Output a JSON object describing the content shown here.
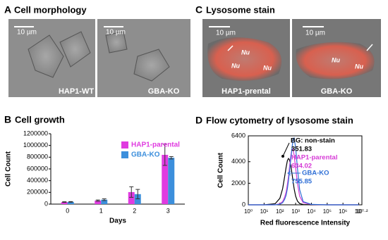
{
  "panels": [
    {
      "letter": "A",
      "title": "Cell morphology",
      "images": [
        {
          "scale": "10 µm",
          "label": "HAP1-WT"
        },
        {
          "scale": "10 µm",
          "label": "GBA-KO"
        }
      ]
    },
    {
      "letter": "C",
      "title": "Lysosome stain",
      "images": [
        {
          "scale": "10 µm",
          "label": "HAP1-prental",
          "nuclei": [
            "Nu",
            "Nu",
            "Nu"
          ]
        },
        {
          "scale": "10 µm",
          "label": "GBA-KO",
          "nuclei": [
            "Nu",
            "Nu"
          ]
        }
      ]
    }
  ],
  "chart_data": [
    {
      "type": "bar",
      "letter": "B",
      "title": "Cell growth",
      "xlabel": "Days",
      "ylabel": "Cell Count",
      "categories": [
        "0",
        "1",
        "2",
        "3"
      ],
      "series": [
        {
          "name": "HAP1-parental",
          "color": "#e03be0",
          "values": [
            35000,
            60000,
            205000,
            840000
          ],
          "errors": [
            5000,
            10000,
            90000,
            180000
          ]
        },
        {
          "name": "GBA-KO",
          "color": "#3c8fdc",
          "values": [
            38000,
            75000,
            170000,
            790000
          ],
          "errors": [
            5000,
            15000,
            80000,
            20000
          ]
        }
      ],
      "ylim": [
        0,
        1200000
      ],
      "yticks": [
        0,
        200000,
        400000,
        600000,
        800000,
        1000000,
        1200000
      ]
    },
    {
      "type": "line",
      "letter": "D",
      "title": "Flow cytometry of lysosome stain",
      "xlabel": "Red fluorescence Intensity",
      "ylabel": "Cell Count",
      "xscale": "log",
      "x": [
        1,
        10,
        50,
        100,
        150,
        200,
        250,
        300,
        350,
        400,
        500,
        600,
        700,
        800,
        1000,
        1300,
        1800,
        3000,
        10000,
        100000,
        10000000
      ],
      "series": [
        {
          "name": "BG: non-stain",
          "median": 351.83,
          "color": "#000000",
          "values": [
            0,
            0,
            100,
            600,
            1500,
            2600,
            3500,
            4100,
            4300,
            4200,
            3600,
            2800,
            2100,
            1500,
            800,
            350,
            120,
            30,
            0,
            0,
            0
          ]
        },
        {
          "name": "HAP1-parental",
          "median": 634.02,
          "color": "#d63ad6",
          "values": [
            0,
            0,
            0,
            100,
            300,
            700,
            1200,
            1900,
            2600,
            3400,
            4600,
            5200,
            5100,
            4600,
            3400,
            2000,
            800,
            200,
            30,
            0,
            0
          ]
        },
        {
          "name": "GBA-KO",
          "median": 755.85,
          "color": "#2f6fd6",
          "values": [
            0,
            0,
            0,
            50,
            200,
            500,
            900,
            1500,
            2200,
            3000,
            4300,
            5400,
            6100,
            6200,
            5300,
            3400,
            1400,
            300,
            40,
            0,
            0
          ]
        }
      ],
      "xlim": [
        1,
        15848932
      ],
      "xticks": [
        {
          "value": 1,
          "label": "10⁰"
        },
        {
          "value": 10,
          "label": "10¹"
        },
        {
          "value": 100,
          "label": "10²"
        },
        {
          "value": 1000,
          "label": "10³"
        },
        {
          "value": 10000,
          "label": "10⁴"
        },
        {
          "value": 100000,
          "label": "10⁵"
        },
        {
          "value": 1000000,
          "label": "10⁶"
        },
        {
          "value": 10000000,
          "label": "10⁷"
        },
        {
          "value": 15848932,
          "label": "10⁷·²"
        }
      ],
      "ylim": [
        0,
        6400
      ],
      "yticks": [
        0,
        2000,
        4000,
        6400
      ]
    }
  ]
}
